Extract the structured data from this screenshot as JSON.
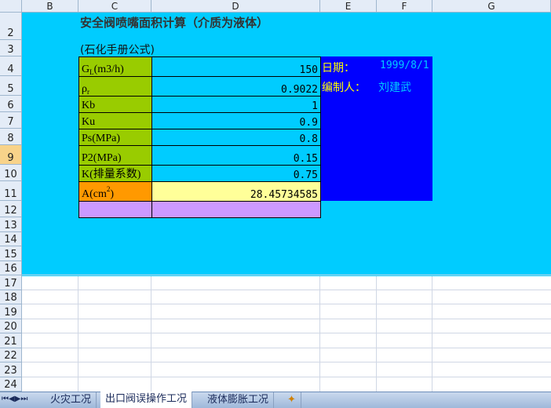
{
  "columns": [
    "B",
    "C",
    "D",
    "E",
    "F",
    "G"
  ],
  "rows": [
    "2",
    "3",
    "4",
    "5",
    "6",
    "7",
    "8",
    "9",
    "10",
    "11",
    "12",
    "13",
    "14",
    "15",
    "16",
    "17",
    "18",
    "19",
    "20",
    "21",
    "22",
    "23",
    "24"
  ],
  "title": "安全阀喷嘴面积计算（介质为液体）",
  "subtitle": "(石化手册公式)",
  "params": [
    {
      "label": "G",
      "sub": "L",
      "suffix": "(m3/h)",
      "value": "150"
    },
    {
      "label": "ρ",
      "sub": "r",
      "suffix": "",
      "value": "0.9022"
    },
    {
      "label": "Kb",
      "sub": "",
      "suffix": "",
      "value": "1"
    },
    {
      "label": "Ku",
      "sub": "",
      "suffix": "",
      "value": "0.9"
    },
    {
      "label": "Ps(MPa)",
      "sub": "",
      "suffix": "",
      "value": "0.8"
    },
    {
      "label": "P2(MPa)",
      "sub": "",
      "suffix": "",
      "value": "0.15"
    },
    {
      "label": "K(排量系数)",
      "sub": "",
      "suffix": "",
      "value": "0.75"
    }
  ],
  "result": {
    "label": "A(cm",
    "sup": "2",
    "close": ")",
    "value": "28.45734585"
  },
  "info": {
    "date_label": "日期：",
    "date_value": "1999/8/1",
    "author_label": "编制人：",
    "author_value": "刘建武"
  },
  "sheet_tabs": [
    "火灾工况",
    "出口阀误操作工况",
    "液体膨胀工况"
  ],
  "active_tab": 1,
  "colors": {
    "background": "#00CCFF",
    "label_fill": "#99CC00",
    "result_fill": "#FF9900",
    "result_value_fill": "#FFFF99",
    "row12_fill": "#CC99FF",
    "info_fill": "#0000FF",
    "info_text": "#FFFF00"
  }
}
